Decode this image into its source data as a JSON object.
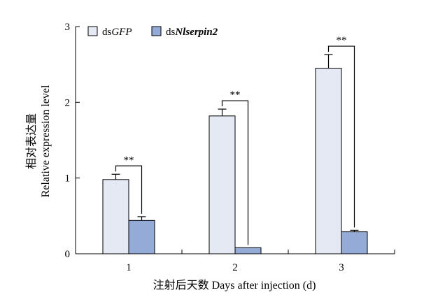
{
  "chart_data": {
    "type": "bar",
    "categories": [
      "1",
      "2",
      "3"
    ],
    "series": [
      {
        "name": "dsGFP",
        "name_prefix": "ds",
        "name_italic": "GFP",
        "color": "#e4e9f4",
        "values": [
          0.98,
          1.82,
          2.45
        ],
        "errors": [
          0.07,
          0.09,
          0.18
        ]
      },
      {
        "name": "dsNlserpin2",
        "name_prefix": "ds",
        "name_italic": "Nlserpin2",
        "color": "#93abd6",
        "values": [
          0.44,
          0.08,
          0.29
        ],
        "errors": [
          0.05,
          0.0,
          0.02
        ]
      }
    ],
    "ylim": [
      0,
      3
    ],
    "yticks": [
      "0",
      "1",
      "2",
      "3"
    ],
    "ylabel_cn": "相对表达量",
    "ylabel": "Relative expression level",
    "xlabel": "注射后天数 Days after injection (d)",
    "significance": [
      "**",
      "**",
      "**"
    ],
    "legend": "top-left"
  }
}
